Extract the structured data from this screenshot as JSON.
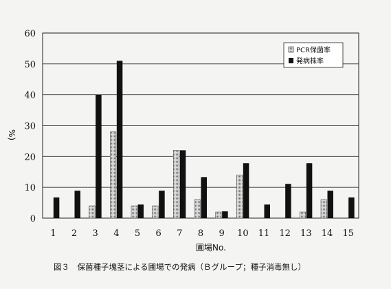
{
  "chart_data": {
    "type": "bar",
    "categories": [
      "1",
      "2",
      "3",
      "4",
      "5",
      "6",
      "7",
      "8",
      "9",
      "10",
      "11",
      "12",
      "13",
      "14",
      "15"
    ],
    "series": [
      {
        "name": "PCR保菌率",
        "color": "#bcbcbc",
        "pattern": "dotted-gray",
        "values": [
          0,
          0,
          4,
          28,
          4,
          4,
          22,
          6,
          2,
          14,
          0,
          0,
          2,
          6,
          0
        ]
      },
      {
        "name": "発病株率",
        "color": "#111111",
        "pattern": "solid-black",
        "values": [
          6.7,
          8.9,
          40,
          51,
          4.4,
          8.9,
          22,
          13.3,
          2.2,
          17.8,
          4.4,
          11.1,
          17.8,
          8.9,
          6.7
        ]
      }
    ],
    "xlabel": "圃場No.",
    "ylabel": "%)",
    "ylim": [
      0,
      60
    ],
    "yticks": [
      0,
      10,
      20,
      30,
      40,
      50,
      60
    ],
    "grid": true,
    "legend": "top-right"
  },
  "caption": "図３　保菌種子塊茎による圃場での発病（Ｂグループ；種子消毒無し）"
}
